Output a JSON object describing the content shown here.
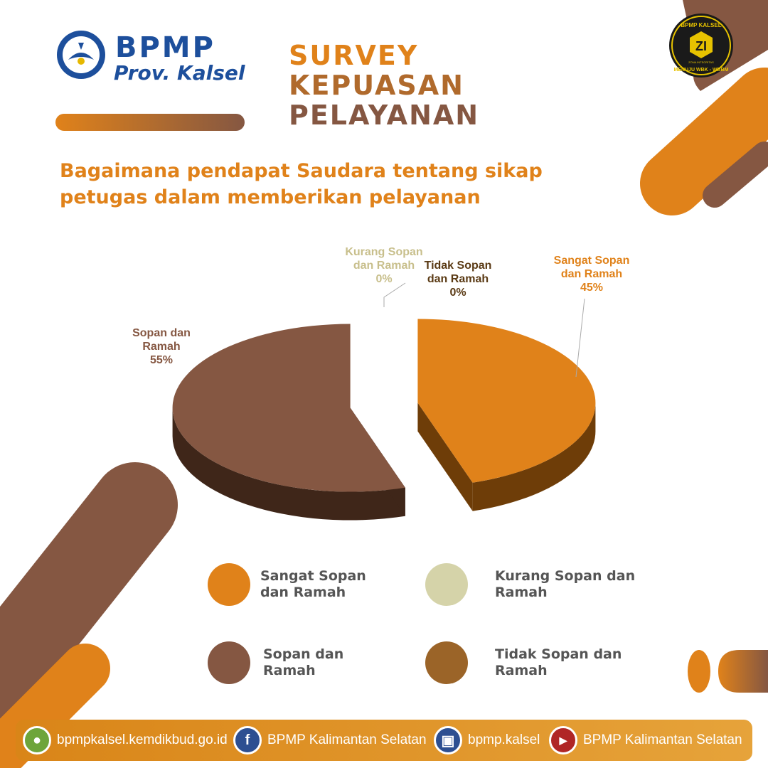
{
  "brand": {
    "logo_name": "BPMP",
    "logo_subtitle": "Prov. Kalsel",
    "emblem_text": "TUT WURI HANDAYANI"
  },
  "badge": {
    "top_text": "BPMP KALSEL",
    "center_text": "ZI",
    "small_text": "ZONA INTEGRITAS",
    "bottom_text": "MENUJU WBK - WBBM"
  },
  "title": {
    "line1": "SURVEY",
    "line2": "KEPUASAN",
    "line3": "PELAYANAN"
  },
  "question": {
    "line1": "Bagaimana pendapat Saudara tentang sikap",
    "line2": "petugas dalam memberikan pelayanan"
  },
  "colors": {
    "orange": "#e0821a",
    "brown": "#855742",
    "beige": "#d5d3a9",
    "dark_brown": "#9b6428",
    "brand_blue": "#1d4f9c"
  },
  "chart_data": {
    "type": "pie",
    "title": "Bagaimana pendapat Saudara tentang sikap petugas dalam memberikan pelayanan",
    "categories": [
      "Sangat Sopan dan Ramah",
      "Kurang Sopan dan Ramah",
      "Tidak Sopan dan Ramah",
      "Sopan dan Ramah"
    ],
    "values": [
      45,
      0,
      0,
      55
    ],
    "unit": "%",
    "legend_position": "bottom",
    "slices": [
      {
        "label_line1": "Sangat Sopan",
        "label_line2": "dan Ramah",
        "value": 45,
        "value_text": "45%",
        "color": "#e0821a"
      },
      {
        "label_line1": "Kurang Sopan",
        "label_line2": "dan Ramah",
        "value": 0,
        "value_text": "0%",
        "color": "#d5d3a9"
      },
      {
        "label_line1": "Tidak Sopan",
        "label_line2": "dan Ramah",
        "value": 0,
        "value_text": "0%",
        "color": "#9b6428"
      },
      {
        "label_line1": "Sopan dan",
        "label_line2": "Ramah",
        "value": 55,
        "value_text": "55%",
        "color": "#855742"
      }
    ]
  },
  "legend": [
    {
      "line1": "Sangat Sopan",
      "line2": "dan Ramah",
      "color": "#e0821a"
    },
    {
      "line1": "Kurang Sopan dan",
      "line2": "Ramah",
      "color": "#d5d3a9"
    },
    {
      "line1": "Sopan dan",
      "line2": "Ramah",
      "color": "#855742"
    },
    {
      "line1": "Tidak Sopan dan",
      "line2": "Ramah",
      "color": "#9b6428"
    }
  ],
  "footer": {
    "website": "bpmpkalsel.kemdikbud.go.id",
    "facebook": "BPMP Kalimantan Selatan",
    "instagram": "bpmp.kalsel",
    "youtube": "BPMP Kalimantan Selatan"
  }
}
